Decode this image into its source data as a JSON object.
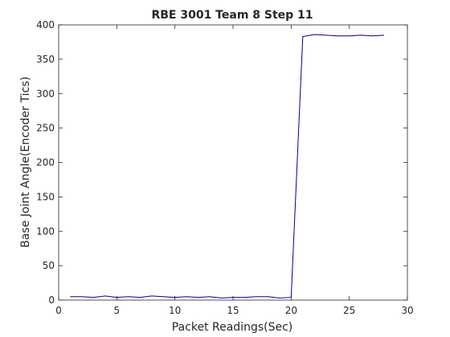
{
  "chart_data": {
    "type": "line",
    "title": "RBE 3001 Team 8 Step 11",
    "xlabel": "Packet Readings(Sec)",
    "ylabel": "Base Joint Angle(Encoder Tics)",
    "xlim": [
      0,
      30
    ],
    "ylim": [
      0,
      400
    ],
    "xticks": [
      0,
      5,
      10,
      15,
      20,
      25,
      30
    ],
    "yticks": [
      0,
      50,
      100,
      150,
      200,
      250,
      300,
      350,
      400
    ],
    "grid": false,
    "line_color": "#00008b",
    "series": [
      {
        "x": [
          1,
          2,
          3,
          4,
          5,
          6,
          7,
          8,
          9,
          10,
          11,
          12,
          13,
          14,
          15,
          16,
          17,
          18,
          19,
          20,
          21,
          22,
          23,
          24,
          25,
          26,
          27,
          28
        ],
        "y": [
          5,
          5,
          4,
          6,
          4,
          5,
          4,
          6,
          5,
          4,
          5,
          4,
          5,
          3,
          4,
          4,
          5,
          5,
          3,
          4,
          383,
          386,
          385,
          384,
          384,
          385,
          384,
          385
        ]
      }
    ]
  }
}
